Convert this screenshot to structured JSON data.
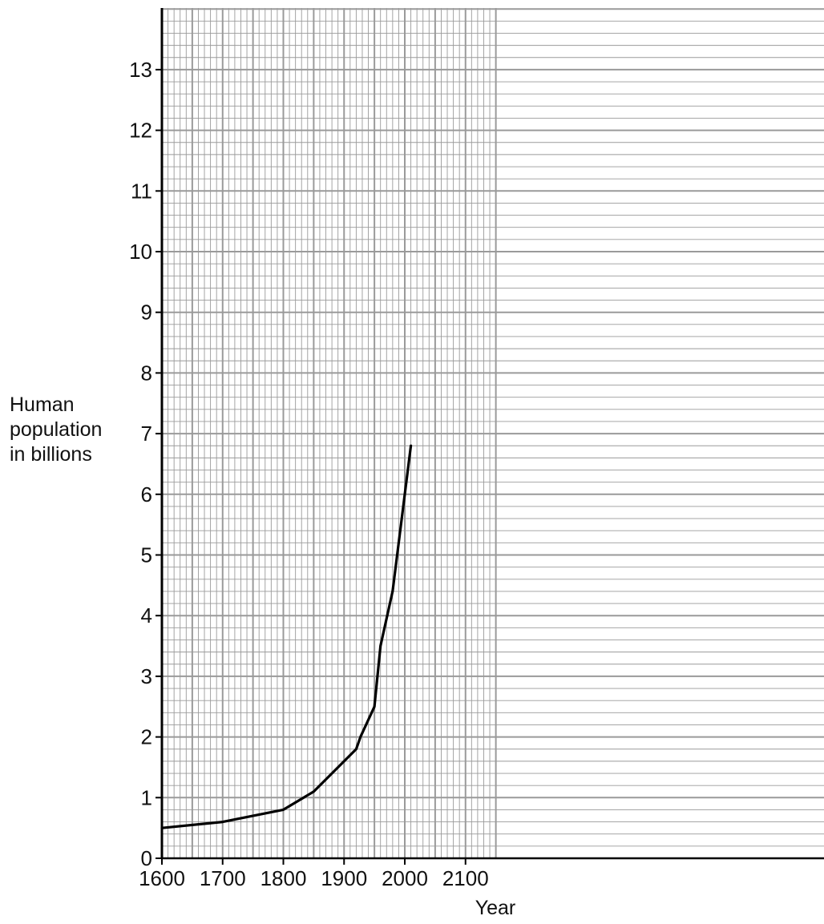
{
  "chart_data": {
    "type": "line",
    "xlabel": "Year",
    "ylabel_lines": [
      "Human",
      "population",
      "in billions"
    ],
    "xlim": [
      1600,
      2150
    ],
    "ylim": [
      0,
      14
    ],
    "x_ticks": [
      "1600",
      "1700",
      "1800",
      "1900",
      "2000",
      "2100"
    ],
    "y_ticks": [
      "0",
      "1",
      "2",
      "3",
      "4",
      "5",
      "6",
      "7",
      "8",
      "9",
      "10",
      "11",
      "12",
      "13"
    ],
    "grid": true,
    "grid_color": "#9a9a9a",
    "line_color": "#000000",
    "series": [
      {
        "x": [
          1600,
          1700,
          1800,
          1850,
          1900,
          1920,
          1927,
          1950,
          1960,
          1980,
          2010
        ],
        "y": [
          0.5,
          0.6,
          0.8,
          1.1,
          1.6,
          1.8,
          2.0,
          2.5,
          3.5,
          4.4,
          6.8
        ]
      }
    ]
  }
}
